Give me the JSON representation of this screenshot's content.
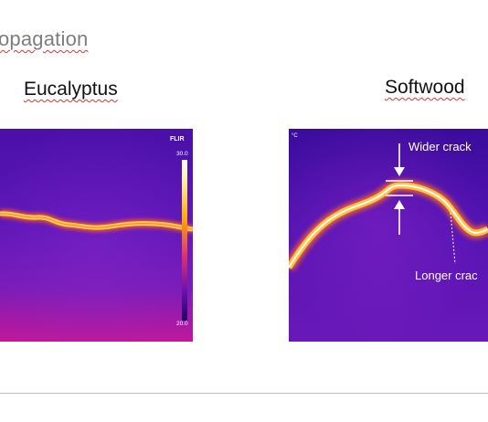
{
  "slide": {
    "title": "opagation"
  },
  "panels": [
    {
      "label": "Eucalyptus",
      "brand": "FLIR",
      "scale_max": "30.0",
      "scale_min": "20.0"
    },
    {
      "label": "Softwood",
      "unit": "°C",
      "annotations": {
        "wider": "Wider crack",
        "longer": "Longer crac"
      }
    }
  ],
  "colors": {
    "thermal_dark": "#2a0a8a",
    "thermal_mid": "#8a2bd0",
    "crack_hot": "#ffe070",
    "crack_core": "#ffffff",
    "title_gray": "#7d7d7d",
    "rule": "#bfbfbf"
  }
}
